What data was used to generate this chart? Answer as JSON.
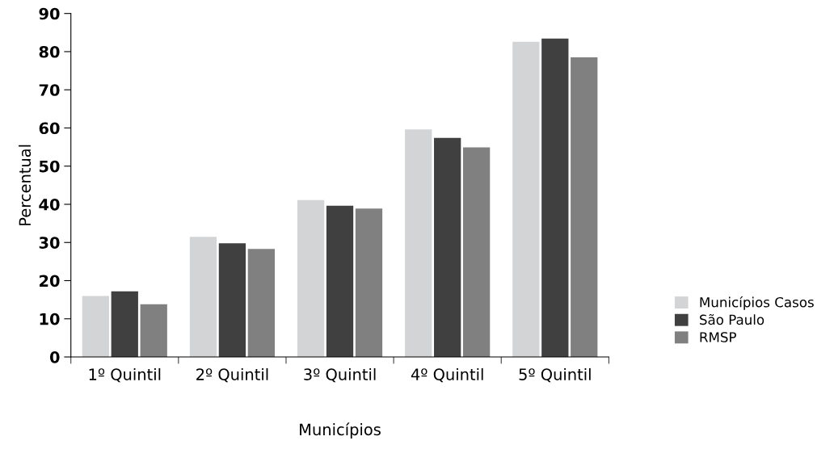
{
  "chart_data": {
    "type": "bar",
    "xlabel": "Municípios",
    "ylabel": "Percentual",
    "categories": [
      "1º Quintil",
      "2º Quintil",
      "3º Quintil",
      "4º Quintil",
      "5º Quintil"
    ],
    "series": [
      {
        "name": "Municípios Casos",
        "color": "#d3d4d6",
        "values": [
          16.0,
          31.5,
          41.1,
          59.6,
          82.6
        ]
      },
      {
        "name": "São Paulo",
        "color": "#404040",
        "values": [
          17.2,
          29.8,
          39.6,
          57.4,
          83.4
        ]
      },
      {
        "name": "RMSP",
        "color": "#808080",
        "values": [
          13.8,
          28.3,
          38.9,
          54.9,
          78.5
        ]
      }
    ],
    "ylim": [
      0,
      90
    ],
    "yticks": [
      0,
      10,
      20,
      30,
      40,
      50,
      60,
      70,
      80,
      90
    ],
    "grid": false,
    "legend": "bottom right"
  }
}
